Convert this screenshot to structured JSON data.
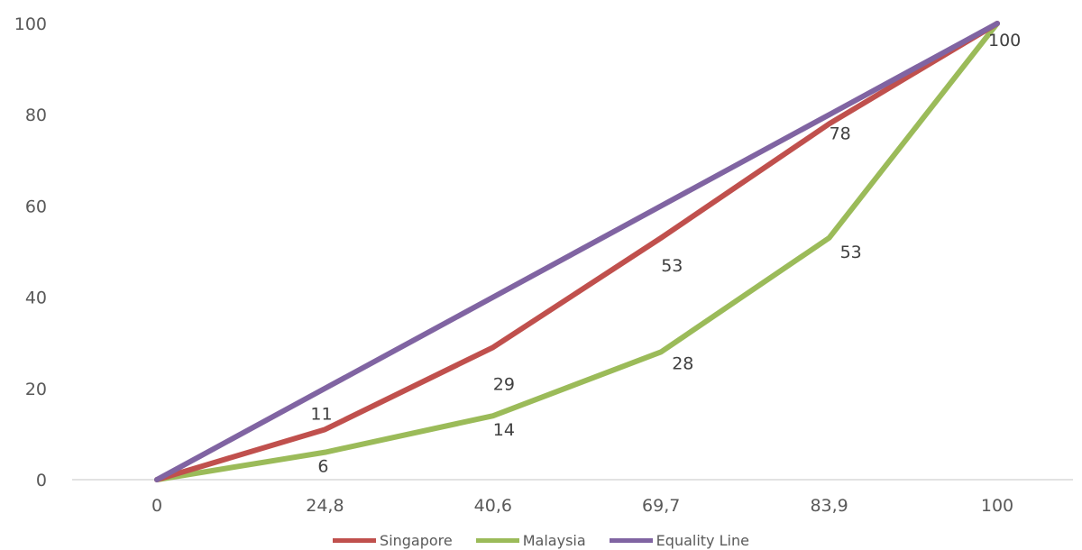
{
  "chart_data": {
    "type": "line",
    "title": "",
    "xlabel": "",
    "ylabel": "",
    "categories": [
      "0",
      "24,8",
      "40,6",
      "69,7",
      "83,9",
      "100"
    ],
    "ylim": [
      0,
      100
    ],
    "yticks": [
      0,
      20,
      40,
      60,
      80,
      100
    ],
    "grid": false,
    "legend_position": "bottom",
    "series": [
      {
        "name": "Singapore",
        "color": "#c0504d",
        "values": [
          0,
          11,
          29,
          53,
          78,
          100
        ],
        "data_labels": [
          "",
          "11",
          "29",
          "53",
          "78",
          "100"
        ]
      },
      {
        "name": "Malaysia",
        "color": "#9bbb59",
        "values": [
          0,
          6,
          14,
          28,
          53,
          100
        ],
        "data_labels": [
          "",
          "6",
          "14",
          "28",
          "53",
          ""
        ]
      },
      {
        "name": "Equality Line",
        "color": "#8064a2",
        "values": [
          0,
          20,
          40,
          60,
          80,
          100
        ],
        "data_labels": [
          "",
          "",
          "",
          "",
          "",
          ""
        ]
      }
    ]
  }
}
